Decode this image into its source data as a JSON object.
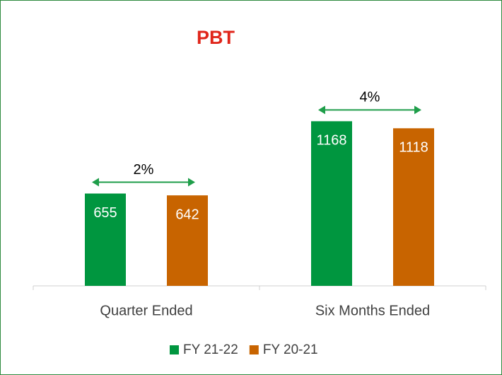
{
  "chart_data": {
    "type": "bar",
    "title": "PBT",
    "categories": [
      "Quarter Ended",
      "Six Months Ended"
    ],
    "series": [
      {
        "name": "FY 21-22",
        "color": "#00963f",
        "values": [
          655,
          1168
        ]
      },
      {
        "name": "FY 20-21",
        "color": "#c86400",
        "values": [
          642,
          1118
        ]
      }
    ],
    "annotations": [
      "2%",
      "4%"
    ],
    "ylim": [
      0,
      1250
    ],
    "legend": "bottom"
  }
}
